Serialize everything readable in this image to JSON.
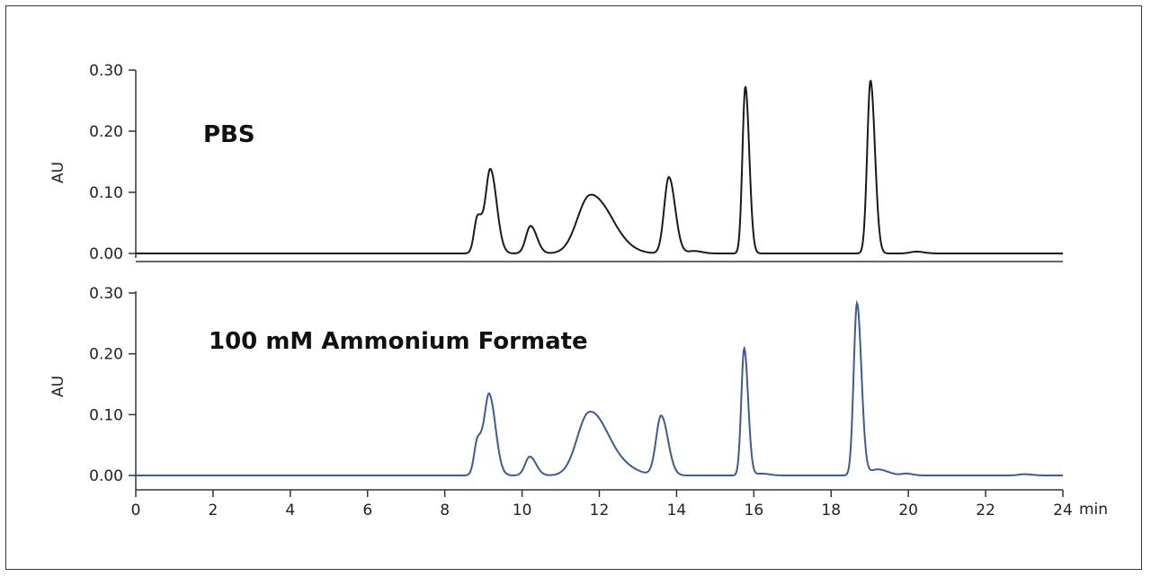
{
  "chart_data": [
    {
      "type": "line",
      "panel_label": "PBS",
      "ylabel": "AU",
      "xlabel": "",
      "ylim": [
        0,
        0.3
      ],
      "yticks": [
        "0.00",
        "0.10",
        "0.20",
        "0.30"
      ],
      "color": "#1a1a1a",
      "peaks": [
        {
          "rt": 8.85,
          "height": 0.06,
          "width": 0.09
        },
        {
          "rt": 9.18,
          "height": 0.137,
          "width": 0.12
        },
        {
          "rt": 10.22,
          "height": 0.045,
          "width": 0.12
        },
        {
          "rt": 11.75,
          "height": 0.093,
          "width": 0.32
        },
        {
          "rt": 12.35,
          "height": 0.02,
          "width": 0.3
        },
        {
          "rt": 13.8,
          "height": 0.125,
          "width": 0.12
        },
        {
          "rt": 14.45,
          "height": 0.004,
          "width": 0.15
        },
        {
          "rt": 15.78,
          "height": 0.273,
          "width": 0.075
        },
        {
          "rt": 19.02,
          "height": 0.283,
          "width": 0.085
        },
        {
          "rt": 20.2,
          "height": 0.003,
          "width": 0.15
        }
      ]
    },
    {
      "type": "line",
      "panel_label": "100 mM Ammonium Formate",
      "ylabel": "AU",
      "xlabel": "min",
      "ylim": [
        0,
        0.3
      ],
      "xlim": [
        0,
        24
      ],
      "yticks": [
        "0.00",
        "0.10",
        "0.20",
        "0.30"
      ],
      "xticks": [
        "0",
        "2",
        "4",
        "6",
        "8",
        "10",
        "12",
        "14",
        "16",
        "18",
        "20",
        "22",
        "24"
      ],
      "color": "#3d5a99",
      "peaks": [
        {
          "rt": 8.85,
          "height": 0.058,
          "width": 0.09
        },
        {
          "rt": 9.15,
          "height": 0.132,
          "width": 0.12
        },
        {
          "rt": 10.2,
          "height": 0.031,
          "width": 0.12
        },
        {
          "rt": 11.72,
          "height": 0.098,
          "width": 0.3
        },
        {
          "rt": 12.3,
          "height": 0.024,
          "width": 0.35
        },
        {
          "rt": 13.6,
          "height": 0.098,
          "width": 0.13
        },
        {
          "rt": 15.75,
          "height": 0.209,
          "width": 0.075
        },
        {
          "rt": 16.2,
          "height": 0.003,
          "width": 0.15
        },
        {
          "rt": 18.67,
          "height": 0.283,
          "width": 0.085
        },
        {
          "rt": 19.2,
          "height": 0.01,
          "width": 0.2
        },
        {
          "rt": 19.95,
          "height": 0.003,
          "width": 0.12
        },
        {
          "rt": 23.0,
          "height": 0.002,
          "width": 0.15
        }
      ]
    }
  ]
}
